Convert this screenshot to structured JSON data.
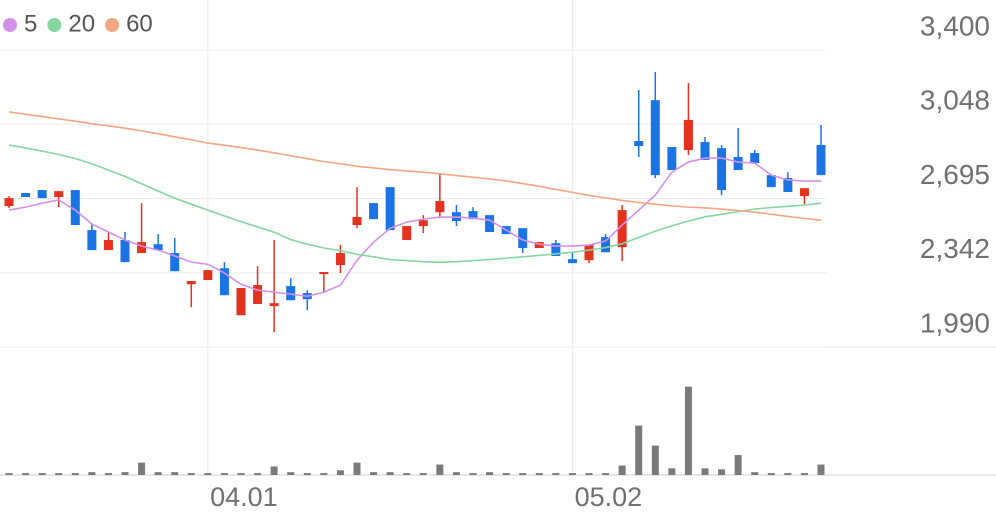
{
  "chart_data": {
    "type": "candlestick",
    "categories": [
      null,
      null,
      null,
      null,
      null,
      null,
      null,
      null,
      null,
      null,
      null,
      null,
      "04.01",
      null,
      null,
      null,
      null,
      null,
      null,
      null,
      null,
      null,
      null,
      null,
      null,
      null,
      null,
      null,
      null,
      null,
      null,
      null,
      null,
      null,
      "05.02",
      null,
      null,
      null,
      null,
      null,
      null,
      null,
      null,
      null,
      null,
      null,
      null,
      null,
      null,
      null
    ],
    "open": [
      2659,
      2721,
      2735,
      2702,
      2735,
      2545,
      2450,
      2498,
      2436,
      2478,
      2436,
      2288,
      2308,
      2364,
      2141,
      2194,
      2184,
      2279,
      2246,
      2336,
      2379,
      2569,
      2673,
      2749,
      2498,
      2564,
      2630,
      2630,
      2635,
      2616,
      2564,
      2554,
      2460,
      2483,
      2407,
      2402,
      2512,
      2464,
      2968,
      3162,
      2939,
      2925,
      2963,
      2934,
      2892,
      2911,
      2806,
      2792,
      2706,
      2949
    ],
    "high": [
      2706,
      2721,
      2735,
      2730,
      2735,
      2574,
      2536,
      2536,
      2673,
      2526,
      2507,
      2303,
      2355,
      2393,
      2270,
      2374,
      2498,
      2317,
      2260,
      2346,
      2474,
      2749,
      2673,
      2749,
      2564,
      2616,
      2816,
      2664,
      2654,
      2616,
      2564,
      2554,
      2488,
      2498,
      2440,
      2474,
      2526,
      2664,
      3210,
      3296,
      2939,
      3243,
      2987,
      2949,
      3030,
      2925,
      2806,
      2820,
      2744,
      3044
    ],
    "low": [
      2650,
      2702,
      2697,
      2654,
      2569,
      2450,
      2450,
      2393,
      2436,
      2450,
      2350,
      2179,
      2308,
      2236,
      2141,
      2194,
      2060,
      2212,
      2165,
      2250,
      2341,
      2554,
      2597,
      2545,
      2498,
      2531,
      2602,
      2564,
      2597,
      2536,
      2526,
      2436,
      2460,
      2422,
      2388,
      2388,
      2440,
      2398,
      2892,
      2792,
      2830,
      2901,
      2878,
      2711,
      2830,
      2863,
      2749,
      2726,
      2668,
      2806
    ],
    "close": [
      2697,
      2702,
      2697,
      2730,
      2569,
      2450,
      2498,
      2393,
      2488,
      2450,
      2350,
      2303,
      2355,
      2236,
      2270,
      2284,
      2198,
      2212,
      2217,
      2346,
      2436,
      2607,
      2597,
      2545,
      2564,
      2592,
      2683,
      2588,
      2597,
      2536,
      2526,
      2460,
      2488,
      2422,
      2388,
      2474,
      2440,
      2640,
      2944,
      2806,
      2830,
      3068,
      2878,
      2735,
      2830,
      2863,
      2749,
      2726,
      2744,
      2806
    ],
    "up_color": "#e3321e",
    "down_color": "#1b74e4",
    "ylim": [
      1990,
      3400
    ],
    "yticks": [
      {
        "value": 3400,
        "label": "3,400"
      },
      {
        "value": 3048,
        "label": "3,048"
      },
      {
        "value": 2695,
        "label": "2,695"
      },
      {
        "value": 2342,
        "label": "2,342"
      },
      {
        "value": 1990,
        "label": "1,990"
      }
    ],
    "grid": true,
    "series": [
      {
        "name": "5",
        "color": "#d590ea",
        "values": [
          2640,
          2654,
          2673,
          2688,
          2640,
          2574,
          2536,
          2498,
          2469,
          2450,
          2422,
          2393,
          2383,
          2341,
          2288,
          2260,
          2250,
          2241,
          2231,
          2250,
          2284,
          2402,
          2488,
          2554,
          2583,
          2597,
          2607,
          2607,
          2602,
          2592,
          2545,
          2498,
          2478,
          2469,
          2469,
          2474,
          2493,
          2569,
          2640,
          2711,
          2820,
          2868,
          2887,
          2887,
          2868,
          2863,
          2806,
          2783,
          2778,
          2778
        ]
      },
      {
        "name": "20",
        "color": "#86d6a0",
        "values": [
          2949,
          2935,
          2920,
          2904,
          2885,
          2860,
          2830,
          2800,
          2765,
          2730,
          2696,
          2668,
          2640,
          2612,
          2585,
          2560,
          2535,
          2500,
          2478,
          2460,
          2448,
          2430,
          2418,
          2405,
          2400,
          2395,
          2392,
          2395,
          2400,
          2405,
          2412,
          2418,
          2425,
          2432,
          2440,
          2450,
          2462,
          2480,
          2510,
          2540,
          2565,
          2588,
          2608,
          2620,
          2632,
          2645,
          2652,
          2658,
          2664,
          2672
        ]
      },
      {
        "name": "60",
        "color": "#f4a582",
        "values": [
          3106,
          3095,
          3084,
          3073,
          3062,
          3050,
          3040,
          3029,
          3016,
          3002,
          2988,
          2974,
          2958,
          2948,
          2937,
          2925,
          2912,
          2898,
          2884,
          2870,
          2860,
          2848,
          2840,
          2832,
          2826,
          2820,
          2812,
          2804,
          2796,
          2788,
          2778,
          2766,
          2753,
          2738,
          2724,
          2710,
          2698,
          2686,
          2676,
          2668,
          2660,
          2654,
          2650,
          2645,
          2638,
          2630,
          2620,
          2610,
          2600,
          2592
        ]
      }
    ],
    "volume": {
      "color": "#7a7a7a",
      "ylim": [
        0,
        100
      ],
      "values": [
        2,
        2,
        2,
        2,
        2,
        3,
        2,
        3,
        13,
        3,
        3,
        2,
        2,
        2,
        2,
        2,
        9,
        3,
        2,
        2,
        5,
        13,
        3,
        3,
        2,
        2,
        11,
        3,
        2,
        3,
        2,
        2,
        2,
        2,
        2,
        2,
        2,
        10,
        52,
        31,
        7,
        93,
        7,
        6,
        21,
        3,
        2,
        2,
        2,
        11
      ]
    }
  }
}
